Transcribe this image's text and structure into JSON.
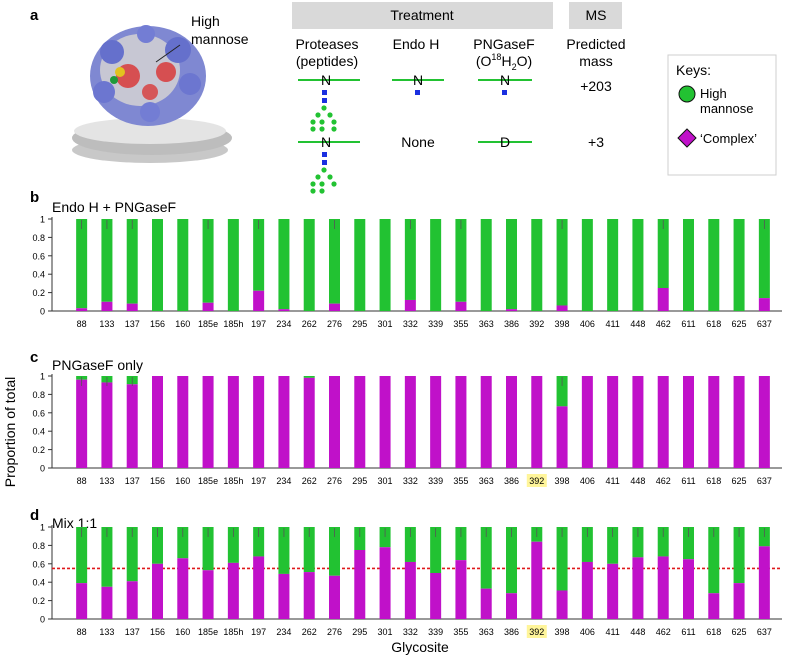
{
  "panel_a": {
    "label": "a",
    "structure_label_line1": "High",
    "structure_label_line2": "mannose",
    "treatment_header": "Treatment",
    "ms_header": "MS",
    "col_proteases_line1": "Proteases",
    "col_proteases_line2": "(peptides)",
    "col_endoh": "Endo H",
    "col_pngasef_line1": "PNGaseF",
    "col_pngasef_line2_pre": "(O",
    "col_pngasef_line2_sup": "18",
    "col_pngasef_line2_mid": "H",
    "col_pngasef_line2_sub": "2",
    "col_pngasef_line2_post": "O)",
    "col_mass_line1": "Predicted",
    "col_mass_line2": "mass",
    "residue_n": "N",
    "residue_d": "D",
    "none_label": "None",
    "mass_row1": "+203",
    "mass_row2": "+3",
    "keys_title": "Keys:",
    "key_high_line1": "High",
    "key_high_line2": "mannose",
    "key_complex": "‘Complex’",
    "colors": {
      "green": "#22c232",
      "magenta": "#c011c9",
      "blue": "#1a2fe0",
      "header_grey": "#d9d9d9"
    }
  },
  "shared": {
    "ylabel": "Proportion of total",
    "xlabel": "Glycosite",
    "yticks": [
      "0",
      "0.2",
      "0.4",
      "0.6",
      "0.8",
      "1"
    ],
    "highlight_site": "392",
    "highlight_color": "#fff59a",
    "green_color": "#22c232",
    "magenta_color": "#c011c9",
    "red_line_color": "#e0191b"
  },
  "chart_data": [
    {
      "panel": "b",
      "type": "bar",
      "stacked": true,
      "title": "Endo H + PNGaseF",
      "categories": [
        "88",
        "133",
        "137",
        "156",
        "160",
        "185e",
        "185h",
        "197",
        "234",
        "262",
        "276",
        "295",
        "301",
        "332",
        "339",
        "355",
        "363",
        "386",
        "392",
        "398",
        "406",
        "411",
        "448",
        "462",
        "611",
        "618",
        "625",
        "637"
      ],
      "series": [
        {
          "name": "‘Complex’",
          "values": [
            0.03,
            0.1,
            0.08,
            0.0,
            0.0,
            0.09,
            0.0,
            0.22,
            0.02,
            0.0,
            0.08,
            0.0,
            0.0,
            0.12,
            0.0,
            0.1,
            0.0,
            0.02,
            0.0,
            0.06,
            0.0,
            0.0,
            0.0,
            0.25,
            0.0,
            0.0,
            0.0,
            0.14
          ]
        },
        {
          "name": "High mannose",
          "values": [
            0.97,
            0.9,
            0.92,
            1.0,
            1.0,
            0.91,
            1.0,
            0.78,
            0.98,
            1.0,
            0.92,
            1.0,
            1.0,
            0.88,
            1.0,
            0.9,
            1.0,
            0.98,
            1.0,
            0.94,
            1.0,
            1.0,
            1.0,
            0.75,
            1.0,
            1.0,
            1.0,
            0.86
          ]
        }
      ],
      "ylim": [
        0,
        1
      ],
      "highlight": false
    },
    {
      "panel": "c",
      "type": "bar",
      "stacked": true,
      "title": "PNGaseF only",
      "categories": [
        "88",
        "133",
        "137",
        "156",
        "160",
        "185e",
        "185h",
        "197",
        "234",
        "262",
        "276",
        "295",
        "301",
        "332",
        "339",
        "355",
        "363",
        "386",
        "392",
        "398",
        "406",
        "411",
        "448",
        "462",
        "611",
        "618",
        "625",
        "637"
      ],
      "series": [
        {
          "name": "‘Complex’",
          "values": [
            0.96,
            0.93,
            0.91,
            1.0,
            1.0,
            1.0,
            1.0,
            1.0,
            1.0,
            0.98,
            1.0,
            1.0,
            1.0,
            1.0,
            1.0,
            1.0,
            1.0,
            1.0,
            1.0,
            0.67,
            1.0,
            1.0,
            1.0,
            1.0,
            1.0,
            1.0,
            1.0,
            1.0
          ]
        },
        {
          "name": "High mannose",
          "values": [
            0.04,
            0.07,
            0.09,
            0.0,
            0.0,
            0.0,
            0.0,
            0.0,
            0.0,
            0.02,
            0.0,
            0.0,
            0.0,
            0.0,
            0.0,
            0.0,
            0.0,
            0.0,
            0.0,
            0.33,
            0.0,
            0.0,
            0.0,
            0.0,
            0.0,
            0.0,
            0.0,
            0.0
          ]
        }
      ],
      "ylim": [
        0,
        1
      ],
      "highlight": true
    },
    {
      "panel": "d",
      "type": "bar",
      "stacked": true,
      "title": "Mix 1:1",
      "categories": [
        "88",
        "133",
        "137",
        "156",
        "160",
        "185e",
        "185h",
        "197",
        "234",
        "262",
        "276",
        "295",
        "301",
        "332",
        "339",
        "355",
        "363",
        "386",
        "392",
        "398",
        "406",
        "411",
        "448",
        "462",
        "611",
        "618",
        "625",
        "637"
      ],
      "series": [
        {
          "name": "‘Complex’",
          "values": [
            0.39,
            0.35,
            0.41,
            0.6,
            0.66,
            0.53,
            0.61,
            0.68,
            0.49,
            0.51,
            0.47,
            0.75,
            0.78,
            0.62,
            0.5,
            0.64,
            0.33,
            0.28,
            0.84,
            0.31,
            0.62,
            0.6,
            0.67,
            0.68,
            0.65,
            0.28,
            0.39,
            0.79
          ]
        },
        {
          "name": "High mannose",
          "values": [
            0.61,
            0.65,
            0.59,
            0.4,
            0.34,
            0.47,
            0.39,
            0.32,
            0.51,
            0.49,
            0.53,
            0.25,
            0.22,
            0.38,
            0.5,
            0.36,
            0.67,
            0.72,
            0.16,
            0.69,
            0.38,
            0.4,
            0.33,
            0.32,
            0.35,
            0.72,
            0.61,
            0.21
          ]
        }
      ],
      "ylim": [
        0,
        1
      ],
      "reference_line": 0.55,
      "highlight": true
    }
  ]
}
